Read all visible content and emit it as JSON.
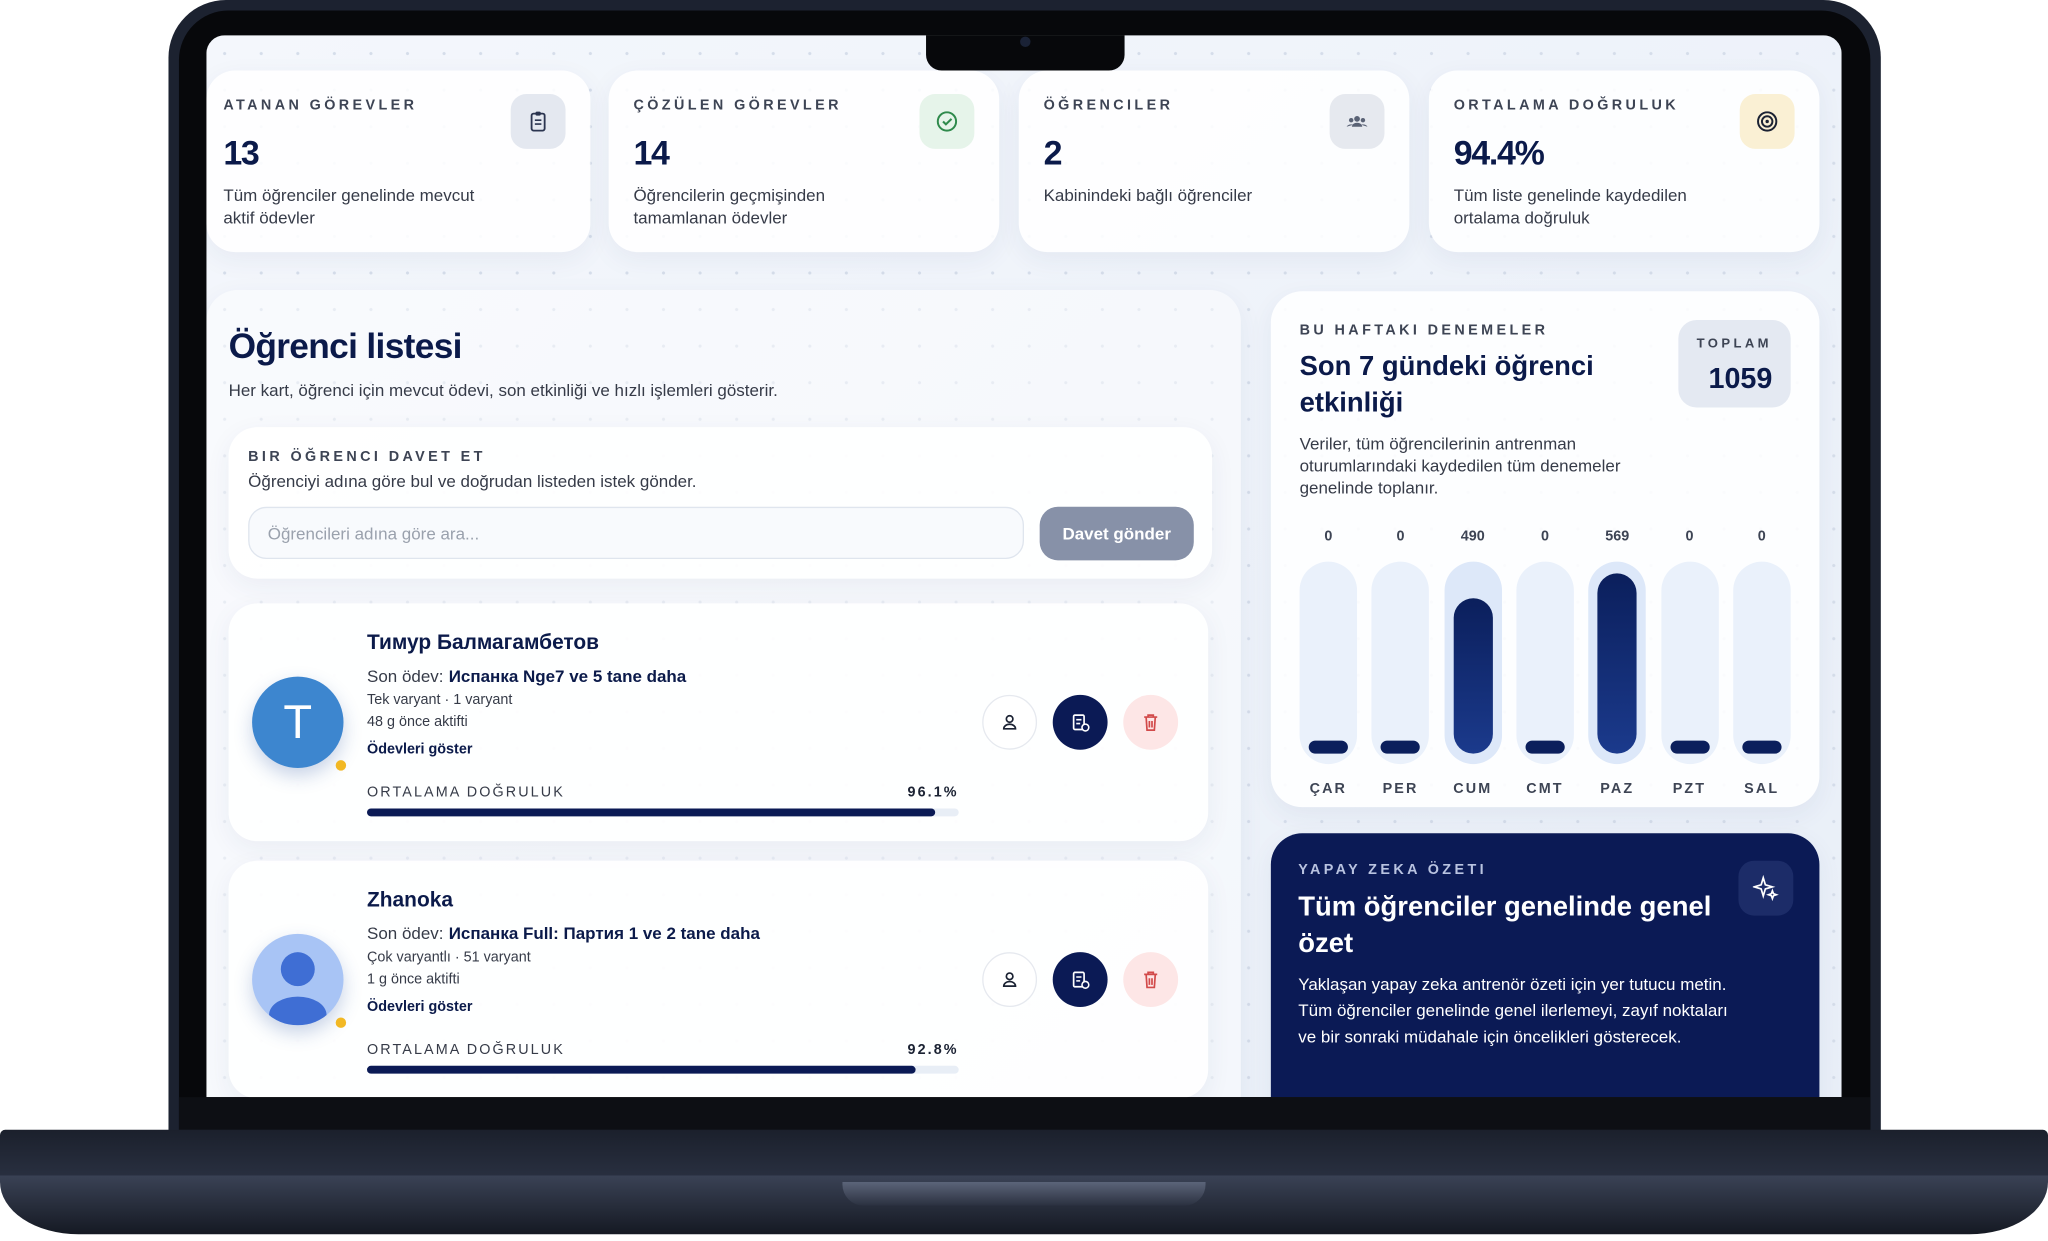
{
  "stats": [
    {
      "label": "ATANAN GÖREVLER",
      "value": "13",
      "description": "Tüm öğrenciler genelinde mevcut aktif ödevler"
    },
    {
      "label": "ÇÖZÜLEN GÖREVLER",
      "value": "14",
      "description": "Öğrencilerin geçmişinden tamamlanan ödevler"
    },
    {
      "label": "ÖĞRENCILER",
      "value": "2",
      "description": "Kabinindeki bağlı öğrenciler"
    },
    {
      "label": "ORTALAMA DOĞRULUK",
      "value": "94.4%",
      "description": "Tüm liste genelinde kaydedilen ortalama doğruluk"
    }
  ],
  "student_list": {
    "title": "Öğrenci listesi",
    "subtitle": "Her kart, öğrenci için mevcut ödevi, son etkinliği ve hızlı işlemleri gösterir.",
    "invite": {
      "label": "BIR ÖĞRENCI DAVET ET",
      "description": "Öğrenciyi adına göre bul ve doğrudan listeden istek gönder.",
      "placeholder": "Öğrencileri adına göre ara...",
      "button": "Davet gönder"
    },
    "students": [
      {
        "initial": "T",
        "name": "Тимур Балмагамбетов",
        "last_label": "Son ödev:",
        "last_assignment": "Испанка Nge7 ve 5 tane daha",
        "variant": "Tek varyant · 1 varyant",
        "active": "48 g önce aktifti",
        "link": "Ödevleri göster",
        "accuracy_title": "ORTALAMA DOĞRULUK",
        "accuracy": 96.1,
        "accuracy_label": "96.1%"
      },
      {
        "name": "Zhanoka",
        "last_label": "Son ödev:",
        "last_assignment": "Испанка Full: Партия 1 ve 2 tane daha",
        "variant": "Çok varyantlı · 51 varyant",
        "active": "1 g önce aktifti",
        "link": "Ödevleri göster",
        "accuracy_title": "ORTALAMA DOĞRULUK",
        "accuracy": 92.8,
        "accuracy_label": "92.8%"
      }
    ]
  },
  "activity": {
    "eyebrow": "BU HAFTAKI DENEMELER",
    "title": "Son 7 gündeki öğrenci etkinliği",
    "description": "Veriler, tüm öğrencilerinin antrenman oturumlarındaki kaydedilen tüm denemeler genelinde toplanır.",
    "total_label": "TOPLAM",
    "total": "1059",
    "chart": {
      "type": "bar",
      "categories": [
        "ÇAR",
        "PER",
        "CUM",
        "CMT",
        "PAZ",
        "PZT",
        "SAL"
      ],
      "values": [
        0,
        0,
        490,
        0,
        569,
        0,
        0
      ],
      "color": "#0b1f5c"
    }
  },
  "ai_summary": {
    "eyebrow": "YAPAY ZEKA ÖZETI",
    "title": "Tüm öğrenciler genelinde genel özet",
    "text": "Yaklaşan yapay zeka antrenör özeti için yer tutucu metin. Tüm öğrenciler genelinde genel ilerlemeyi, zayıf noktaları ve bir sonraki müdahale için öncelikleri gösterecek."
  }
}
